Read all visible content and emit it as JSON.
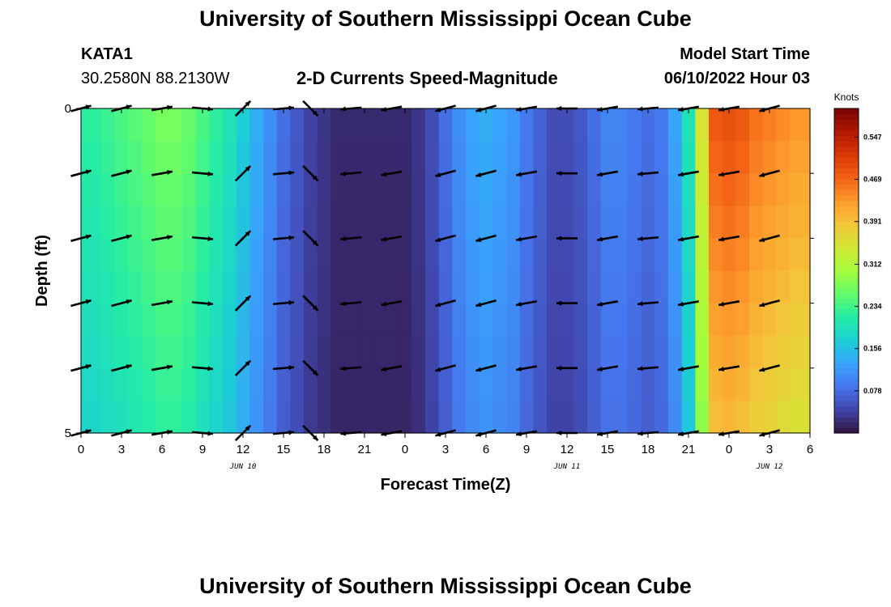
{
  "header": {
    "title": "University of Southern Mississippi Ocean Cube",
    "station": "KATA1",
    "coordinates": "30.2580N  88.2130W",
    "model_start_label": "Model Start Time",
    "model_start_value": "06/10/2022 Hour 03",
    "footer_title": "University of Southern Mississippi Ocean Cube"
  },
  "chart_data": {
    "type": "heatmap",
    "title": "2-D Currents Speed-Magnitude",
    "xlabel": "Forecast Time(Z)",
    "ylabel": "Depth (ft)",
    "x_tick_labels": [
      "0",
      "3",
      "6",
      "9",
      "12",
      "15",
      "18",
      "21",
      "0",
      "3",
      "6",
      "9",
      "12",
      "15",
      "18",
      "21",
      "0",
      "3",
      "6"
    ],
    "x_tick_hours": [
      0,
      3,
      6,
      9,
      12,
      15,
      18,
      21,
      24,
      27,
      30,
      33,
      36,
      39,
      42,
      45,
      48,
      51,
      54
    ],
    "x_range_hours": [
      0,
      54
    ],
    "date_labels": [
      {
        "text": "JUN 10",
        "hour": 12
      },
      {
        "text": "JUN 11",
        "hour": 36
      },
      {
        "text": "JUN 12",
        "hour": 51
      }
    ],
    "y_tick_labels": [
      "0",
      "5"
    ],
    "y_range_ft": [
      0,
      5
    ],
    "colorbar": {
      "title": "Knots",
      "ticks": [
        "0.547",
        "0.469",
        "0.391",
        "0.312",
        "0.234",
        "0.156",
        "0.078"
      ],
      "tick_values": [
        0.547,
        0.469,
        0.391,
        0.312,
        0.234,
        0.156,
        0.078
      ],
      "range": [
        0,
        0.6
      ],
      "colors": [
        "#30123b",
        "#4145ab",
        "#4675ed",
        "#39a2fc",
        "#1bcfd4",
        "#24eca6",
        "#61fc6c",
        "#a4fc3b",
        "#d1e834",
        "#f3c63a",
        "#fe9b2d",
        "#f36315",
        "#d93806",
        "#b11901",
        "#7a0403"
      ]
    },
    "depth_rows_ft": [
      0.25,
      0.75,
      1.25,
      1.75,
      2.25,
      2.75,
      3.25,
      3.75,
      4.25,
      4.75
    ],
    "hour_columns": [
      0,
      1,
      2,
      3,
      4,
      5,
      6,
      7,
      8,
      9,
      10,
      11,
      12,
      13,
      14,
      15,
      16,
      17,
      18,
      19,
      20,
      21,
      22,
      23,
      24,
      25,
      26,
      27,
      28,
      29,
      30,
      31,
      32,
      33,
      34,
      35,
      36,
      37,
      38,
      39,
      40,
      41,
      42,
      43,
      44,
      45,
      46,
      47,
      48,
      49,
      50,
      51,
      52,
      53,
      54
    ],
    "speed_knots_surface": [
      0.22,
      0.22,
      0.23,
      0.24,
      0.25,
      0.26,
      0.27,
      0.27,
      0.26,
      0.24,
      0.22,
      0.2,
      0.17,
      0.14,
      0.11,
      0.08,
      0.06,
      0.04,
      0.03,
      0.02,
      0.02,
      0.02,
      0.02,
      0.02,
      0.02,
      0.03,
      0.05,
      0.08,
      0.11,
      0.13,
      0.14,
      0.13,
      0.12,
      0.09,
      0.07,
      0.05,
      0.05,
      0.06,
      0.08,
      0.1,
      0.1,
      0.09,
      0.08,
      0.09,
      0.13,
      0.2,
      0.35,
      0.48,
      0.49,
      0.48,
      0.46,
      0.45,
      0.44,
      0.43,
      0.43
    ],
    "vectors": {
      "depth_levels_ft": [
        0,
        1,
        2,
        3,
        4,
        5
      ],
      "hours": [
        0,
        3,
        6,
        9,
        12,
        15,
        17,
        20,
        23,
        27,
        30,
        33,
        36,
        39,
        42,
        45,
        48,
        51
      ],
      "direction_deg_surface": [
        75,
        75,
        80,
        95,
        45,
        85,
        135,
        265,
        260,
        255,
        255,
        260,
        270,
        260,
        265,
        260,
        260,
        255
      ]
    }
  }
}
